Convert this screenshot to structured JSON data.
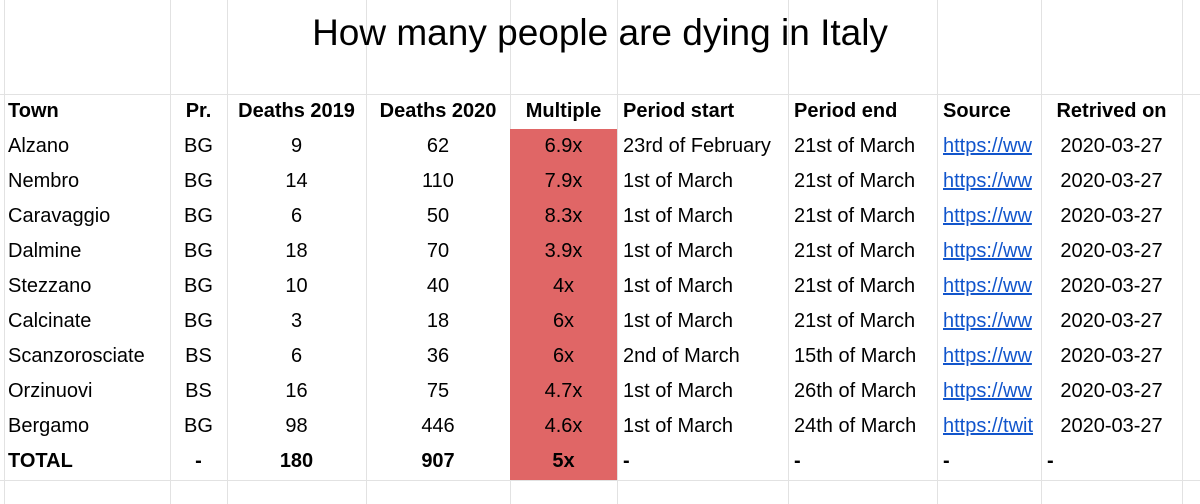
{
  "title": "How many people are dying in Italy",
  "headers": {
    "town": "Town",
    "province": "Pr.",
    "deaths_2019": "Deaths 2019",
    "deaths_2020": "Deaths 2020",
    "multiple": "Multiple",
    "period_start": "Period start",
    "period_end": "Period end",
    "source": "Source",
    "retrieved_on": "Retrived on"
  },
  "rows": [
    {
      "town": "Alzano",
      "province": "BG",
      "deaths_2019": "9",
      "deaths_2020": "62",
      "multiple": "6.9x",
      "period_start": "23rd of February",
      "period_end": "21st of March",
      "source": "https://ww",
      "retrieved_on": "2020-03-27"
    },
    {
      "town": "Nembro",
      "province": "BG",
      "deaths_2019": "14",
      "deaths_2020": "110",
      "multiple": "7.9x",
      "period_start": "1st of March",
      "period_end": "21st of March",
      "source": "https://ww",
      "retrieved_on": "2020-03-27"
    },
    {
      "town": "Caravaggio",
      "province": "BG",
      "deaths_2019": "6",
      "deaths_2020": "50",
      "multiple": "8.3x",
      "period_start": "1st of March",
      "period_end": "21st of March",
      "source": "https://ww",
      "retrieved_on": "2020-03-27"
    },
    {
      "town": "Dalmine",
      "province": "BG",
      "deaths_2019": "18",
      "deaths_2020": "70",
      "multiple": "3.9x",
      "period_start": "1st of March",
      "period_end": "21st of March",
      "source": "https://ww",
      "retrieved_on": "2020-03-27"
    },
    {
      "town": "Stezzano",
      "province": "BG",
      "deaths_2019": "10",
      "deaths_2020": "40",
      "multiple": "4x",
      "period_start": "1st of March",
      "period_end": "21st of March",
      "source": "https://ww",
      "retrieved_on": "2020-03-27"
    },
    {
      "town": "Calcinate",
      "province": "BG",
      "deaths_2019": "3",
      "deaths_2020": "18",
      "multiple": "6x",
      "period_start": "1st of March",
      "period_end": "21st of March",
      "source": "https://ww",
      "retrieved_on": "2020-03-27"
    },
    {
      "town": "Scanzorosciate",
      "province": "BS",
      "deaths_2019": "6",
      "deaths_2020": "36",
      "multiple": "6x",
      "period_start": "2nd of March",
      "period_end": "15th of March",
      "source": "https://ww",
      "retrieved_on": "2020-03-27"
    },
    {
      "town": "Orzinuovi",
      "province": "BS",
      "deaths_2019": "16",
      "deaths_2020": "75",
      "multiple": "4.7x",
      "period_start": "1st of March",
      "period_end": "26th of March",
      "source": "https://ww",
      "retrieved_on": "2020-03-27"
    },
    {
      "town": "Bergamo",
      "province": "BG",
      "deaths_2019": "98",
      "deaths_2020": "446",
      "multiple": "4.6x",
      "period_start": "1st of March",
      "period_end": "24th of March",
      "source": "https://twit",
      "retrieved_on": "2020-03-27"
    }
  ],
  "total": {
    "town": "TOTAL",
    "province": "-",
    "deaths_2019": "180",
    "deaths_2020": "907",
    "multiple": "5x",
    "period_start": "-",
    "period_end": "-",
    "source": "-",
    "retrieved_on": "-"
  },
  "colors": {
    "multiple_highlight": "#e06666",
    "link": "#1155cc",
    "gridline": "#e2e2e2"
  }
}
